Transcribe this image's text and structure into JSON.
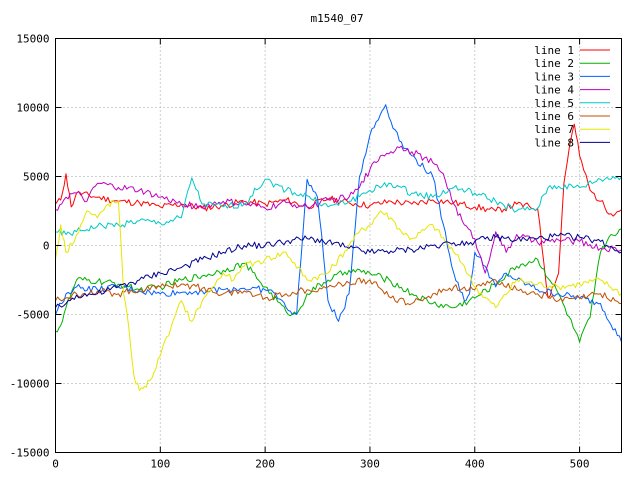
{
  "chart_data": {
    "type": "line",
    "title": "m1540_07",
    "xlabel": "",
    "ylabel": "",
    "xlim": [
      0,
      540
    ],
    "ylim": [
      -15000,
      15000
    ],
    "xticks": [
      0,
      100,
      200,
      300,
      400,
      500
    ],
    "yticks": [
      -15000,
      -10000,
      -5000,
      0,
      5000,
      10000,
      15000
    ],
    "grid": true,
    "legend_position": "top-right",
    "series": [
      {
        "name": "line 1",
        "color": "#ff0000",
        "x": [
          0,
          5,
          10,
          15,
          20,
          40,
          60,
          80,
          100,
          120,
          140,
          160,
          180,
          200,
          220,
          240,
          260,
          280,
          300,
          320,
          340,
          360,
          380,
          400,
          420,
          440,
          460,
          470,
          480,
          485,
          490,
          495,
          500,
          510,
          520,
          530,
          540
        ],
        "y": [
          3000,
          3300,
          5200,
          2800,
          3800,
          3500,
          3200,
          3100,
          2800,
          3000,
          2700,
          2900,
          3200,
          3000,
          3300,
          2800,
          3400,
          3100,
          2900,
          3200,
          3000,
          3300,
          3100,
          2800,
          2500,
          3000,
          2700,
          -3800,
          -2000,
          4500,
          7000,
          8800,
          6500,
          4000,
          3200,
          2300,
          2600
        ]
      },
      {
        "name": "line 2",
        "color": "#00b000",
        "x": [
          0,
          5,
          10,
          20,
          40,
          60,
          80,
          100,
          120,
          140,
          160,
          180,
          200,
          220,
          230,
          240,
          260,
          280,
          300,
          320,
          340,
          360,
          380,
          400,
          420,
          440,
          460,
          480,
          500,
          510,
          520,
          530,
          540
        ],
        "y": [
          -6200,
          -5800,
          -4500,
          -2500,
          -2600,
          -2800,
          -3200,
          -3000,
          -2500,
          -2200,
          -1800,
          -1300,
          -3000,
          -4800,
          -5000,
          -3500,
          -2500,
          -1800,
          -2000,
          -2600,
          -3500,
          -4200,
          -4500,
          -3800,
          -2800,
          -1500,
          -1000,
          -3500,
          -7000,
          -5200,
          -500,
          800,
          1200
        ]
      },
      {
        "name": "line 3",
        "color": "#0060ff",
        "x": [
          0,
          10,
          20,
          40,
          60,
          80,
          100,
          120,
          140,
          160,
          180,
          200,
          210,
          220,
          230,
          240,
          250,
          260,
          270,
          280,
          290,
          300,
          310,
          315,
          320,
          330,
          340,
          360,
          380,
          390,
          395,
          400,
          410,
          420,
          430,
          440,
          450,
          460,
          480,
          500,
          520,
          540
        ],
        "y": [
          -5000,
          -3500,
          -3000,
          -3200,
          -3000,
          -3300,
          -3500,
          -3400,
          -3300,
          -3200,
          -3100,
          -3200,
          -3500,
          -4500,
          -5000,
          4800,
          3500,
          -4000,
          -5500,
          -3500,
          5000,
          8000,
          9500,
          10200,
          9000,
          7500,
          6500,
          5000,
          -2000,
          -4000,
          -3500,
          -500,
          -1500,
          -3000,
          -2000,
          -2500,
          -2800,
          -3200,
          -3500,
          -3800,
          -4200,
          -7000
        ]
      },
      {
        "name": "line 4",
        "color": "#c000c0",
        "x": [
          0,
          10,
          20,
          30,
          40,
          60,
          80,
          100,
          120,
          140,
          160,
          180,
          200,
          220,
          240,
          260,
          280,
          290,
          300,
          310,
          320,
          330,
          340,
          360,
          370,
          380,
          390,
          400,
          410,
          420,
          430,
          440,
          460,
          480,
          500,
          520,
          540
        ],
        "y": [
          2600,
          3500,
          3800,
          3200,
          4500,
          4200,
          4000,
          3500,
          3000,
          2800,
          3200,
          3000,
          2700,
          3100,
          2800,
          3300,
          3500,
          4200,
          5500,
          6500,
          6800,
          7200,
          6800,
          6000,
          5200,
          3000,
          1500,
          500,
          -2000,
          1000,
          -500,
          800,
          200,
          400,
          300,
          -200,
          -300
        ]
      },
      {
        "name": "line 5",
        "color": "#00c8c8",
        "x": [
          0,
          10,
          20,
          40,
          60,
          80,
          100,
          120,
          130,
          140,
          160,
          180,
          200,
          220,
          240,
          260,
          280,
          300,
          320,
          340,
          360,
          380,
          400,
          420,
          440,
          460,
          470,
          480,
          500,
          520,
          540
        ],
        "y": [
          1000,
          800,
          1000,
          1400,
          1500,
          1800,
          1600,
          2000,
          4900,
          3000,
          2800,
          3000,
          4800,
          4000,
          3600,
          2800,
          3200,
          4000,
          4500,
          3800,
          3500,
          4200,
          3800,
          3200,
          2500,
          2700,
          4200,
          4300,
          4200,
          4800,
          5000
        ]
      },
      {
        "name": "line 6",
        "color": "#c05000",
        "x": [
          0,
          10,
          20,
          40,
          60,
          80,
          100,
          120,
          140,
          160,
          180,
          200,
          220,
          240,
          260,
          280,
          300,
          320,
          340,
          360,
          380,
          400,
          420,
          440,
          460,
          480,
          500,
          520,
          540
        ],
        "y": [
          -4000,
          -3800,
          -3500,
          -3300,
          -3500,
          -3200,
          -3000,
          -2800,
          -3100,
          -3500,
          -3300,
          -3800,
          -3500,
          -3200,
          -3000,
          -2700,
          -2500,
          -3800,
          -4200,
          -3500,
          -3000,
          -3200,
          -2500,
          -3200,
          -3500,
          -4000,
          -3800,
          -3500,
          -4200
        ]
      },
      {
        "name": "line 7",
        "color": "#e6e600",
        "x": [
          0,
          5,
          10,
          20,
          30,
          40,
          50,
          60,
          62,
          65,
          70,
          75,
          80,
          85,
          90,
          100,
          110,
          120,
          130,
          140,
          150,
          160,
          170,
          180,
          200,
          220,
          240,
          260,
          280,
          290,
          300,
          310,
          320,
          330,
          340,
          360,
          380,
          390,
          400,
          420,
          440,
          460,
          480,
          500,
          520,
          540
        ],
        "y": [
          -1000,
          1500,
          -500,
          800,
          2500,
          2000,
          3000,
          3200,
          800,
          -3500,
          -6000,
          -9500,
          -10500,
          -10200,
          -9800,
          -8000,
          -6000,
          -4000,
          -5500,
          -4000,
          -3000,
          -2000,
          -2500,
          -1500,
          -1000,
          -500,
          -2500,
          -2000,
          0,
          1000,
          1500,
          2500,
          2000,
          1000,
          500,
          1500,
          -500,
          -1500,
          -3000,
          -4500,
          -2500,
          -2800,
          -3000,
          -2800,
          -2500,
          -3500
        ]
      },
      {
        "name": "line 8",
        "color": "#000090",
        "x": [
          0,
          10,
          20,
          40,
          60,
          80,
          100,
          120,
          140,
          160,
          180,
          200,
          220,
          240,
          260,
          280,
          300,
          320,
          340,
          360,
          380,
          400,
          420,
          440,
          460,
          480,
          500,
          520,
          540
        ],
        "y": [
          -4500,
          -4200,
          -3600,
          -3500,
          -3000,
          -2500,
          -2000,
          -1600,
          -1000,
          -500,
          0,
          0,
          300,
          500,
          300,
          -200,
          -500,
          -400,
          -300,
          0,
          200,
          300,
          600,
          400,
          500,
          700,
          600,
          300,
          -500
        ]
      }
    ]
  }
}
